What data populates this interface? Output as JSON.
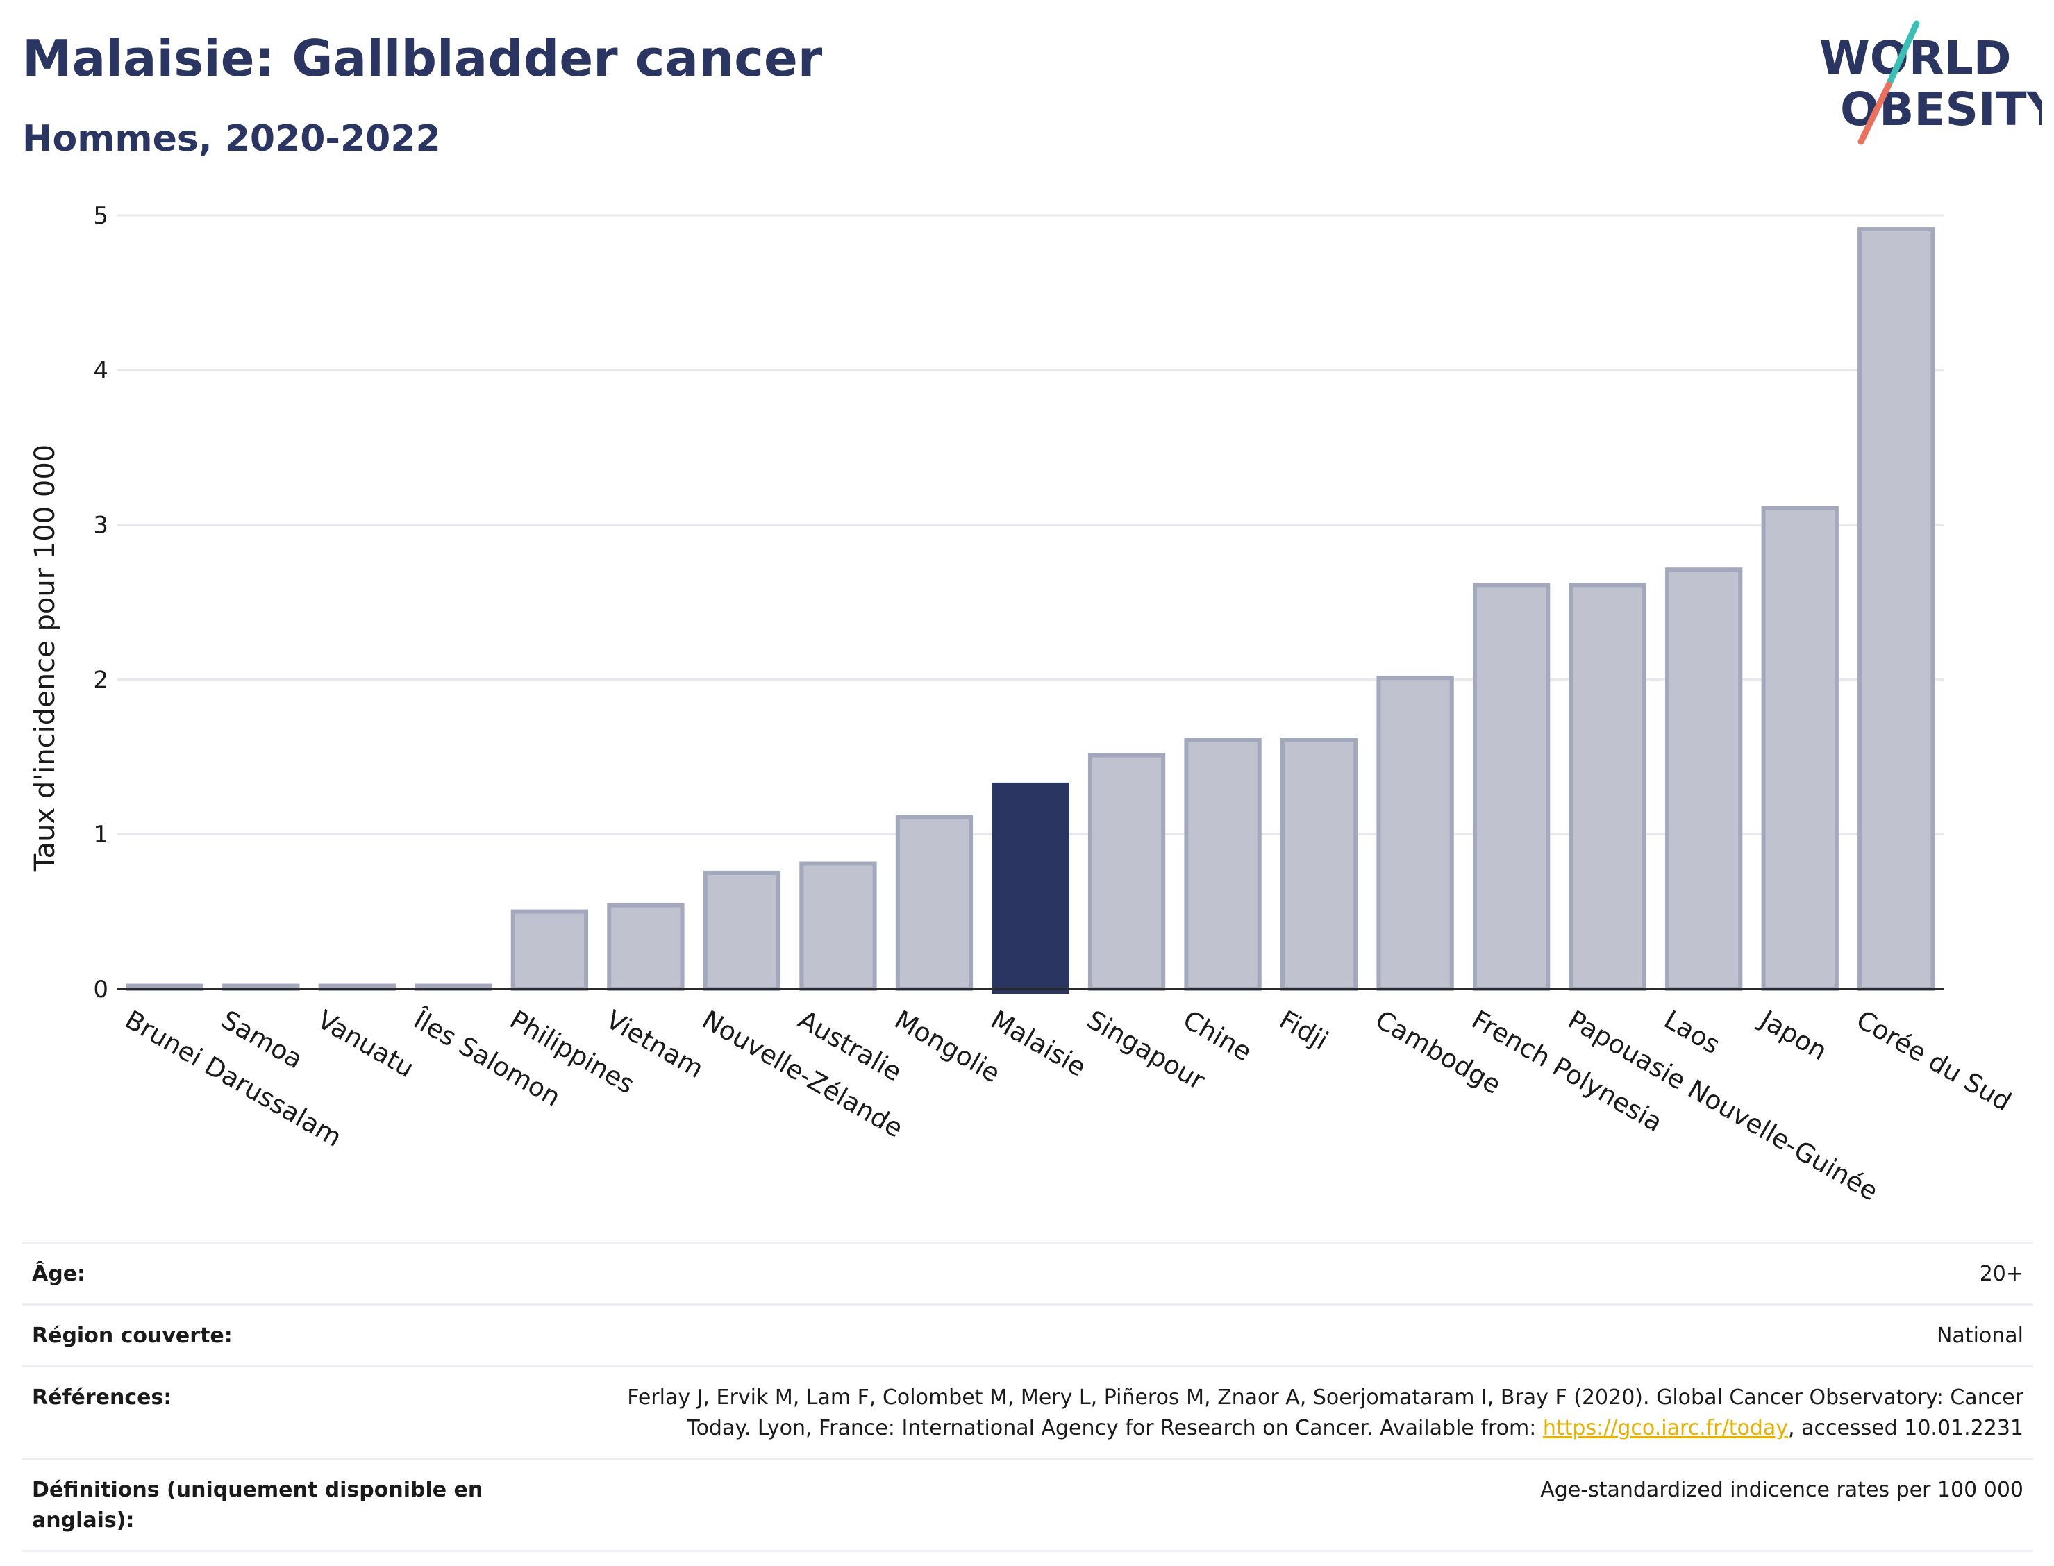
{
  "header": {
    "title": "Malaisie: Gallbladder cancer",
    "subtitle": "Hommes, 2020-2022"
  },
  "logo": {
    "line1": "WORLD",
    "line2": "OBESITY",
    "colors": {
      "text": "#2a3561",
      "slash_teal": "#3bbfb5",
      "slash_coral": "#e8725f"
    }
  },
  "chart_data": {
    "type": "bar",
    "title": "Malaisie: Gallbladder cancer",
    "subtitle": "Hommes, 2020-2022",
    "ylabel": "Taux d'incidence pour 100 000",
    "xlabel": "",
    "ylim": [
      0,
      5
    ],
    "yticks": [
      0,
      1,
      2,
      3,
      4,
      5
    ],
    "grid": true,
    "highlight": "Malaisie",
    "colors": {
      "bar": "#c0c3cf",
      "bar_border": "#a3a8bc",
      "highlight": "#2a3561",
      "grid": "#e8e9ee",
      "axis": "#2a2a2a"
    },
    "categories": [
      "Brunei Darussalam",
      "Samoa",
      "Vanuatu",
      "Îles Salomon",
      "Philippines",
      "Vietnam",
      "Nouvelle-Zélande",
      "Australie",
      "Mongolie",
      "Malaisie",
      "Singapour",
      "Chine",
      "Fidji",
      "Cambodge",
      "French Polynesia",
      "Papouasie Nouvelle-Guinée",
      "Laos",
      "Japon",
      "Corée du Sud"
    ],
    "values": [
      0.02,
      0.02,
      0.02,
      0.02,
      0.5,
      0.54,
      0.75,
      0.81,
      1.11,
      1.32,
      1.51,
      1.61,
      1.61,
      2.01,
      2.61,
      2.61,
      2.71,
      3.11,
      4.91
    ]
  },
  "info": {
    "age_label": "Âge:",
    "age_value": "20+",
    "region_label": "Région couverte:",
    "region_value": "National",
    "refs_label": "Références:",
    "refs_line1": "Ferlay J, Ervik M, Lam F, Colombet M, Mery L, Piñeros M, Znaor A, Soerjomataram I, Bray F (2020). Global Cancer Observatory: Cancer",
    "refs_line2_before": "Today. Lyon, France: International Agency for Research on Cancer. Available from: ",
    "refs_link": "https://gco.iarc.fr/today",
    "refs_line2_after": ", accessed 10.01.2231",
    "defs_label": "Définitions (uniquement disponible en anglais):",
    "defs_value": "Age-standardized indicence rates per 100 000"
  }
}
